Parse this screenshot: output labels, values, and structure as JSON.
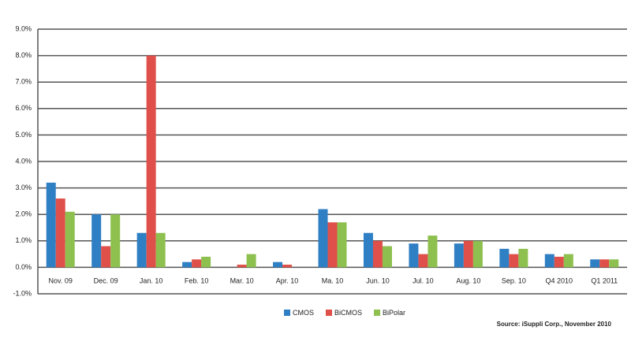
{
  "chart_data": {
    "type": "bar",
    "categories": [
      "Nov. 09",
      "Dec. 09",
      "Jan. 10",
      "Feb. 10",
      "Mar. 10",
      "Apr. 10",
      "Ma. 10",
      "Jun. 10",
      "Jul. 10",
      "Aug. 10",
      "Sep. 10",
      "Q4 2010",
      "Q1 2011"
    ],
    "series": [
      {
        "name": "CMOS",
        "color": "#2f7fc4",
        "values": [
          3.2,
          2.0,
          1.3,
          0.2,
          0.0,
          0.2,
          2.2,
          1.3,
          0.9,
          0.9,
          0.7,
          0.5,
          0.3
        ]
      },
      {
        "name": "BiCMOS",
        "color": "#e0504a",
        "values": [
          2.6,
          0.8,
          8.0,
          0.3,
          0.1,
          0.1,
          1.7,
          1.0,
          0.5,
          1.0,
          0.5,
          0.4,
          0.3
        ]
      },
      {
        "name": "BiPolar",
        "color": "#8dc04f",
        "values": [
          2.1,
          2.0,
          1.3,
          0.4,
          0.5,
          0.0,
          1.7,
          0.8,
          1.2,
          1.0,
          0.7,
          0.5,
          0.3
        ]
      }
    ],
    "ylim": [
      -1.0,
      9.0
    ],
    "yticks": [
      {
        "value": -1.0,
        "label": "-1.0%"
      },
      {
        "value": 0.0,
        "label": "0.0%"
      },
      {
        "value": 1.0,
        "label": "1.0%"
      },
      {
        "value": 2.0,
        "label": "2.0%"
      },
      {
        "value": 3.0,
        "label": "3.0%"
      },
      {
        "value": 4.0,
        "label": "4.0%"
      },
      {
        "value": 5.0,
        "label": "5.0%"
      },
      {
        "value": 6.0,
        "label": "6.0%"
      },
      {
        "value": 7.0,
        "label": "7.0%"
      },
      {
        "value": 8.0,
        "label": "8.0%"
      },
      {
        "value": 9.0,
        "label": "9.0%"
      }
    ],
    "grid": true,
    "legend": "bottom",
    "source": "Source: iSuppli Corp., November 2010"
  }
}
